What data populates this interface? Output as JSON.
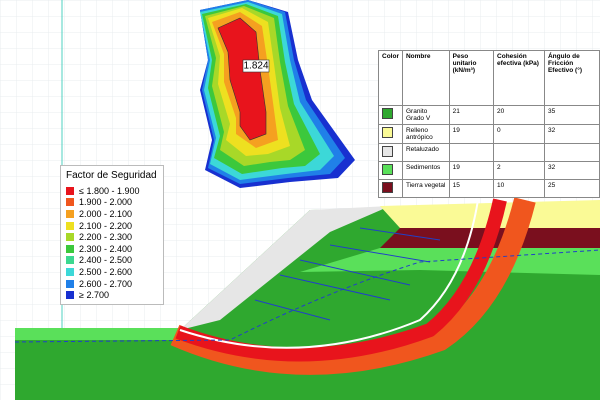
{
  "result": {
    "label": "1.824"
  },
  "legend": {
    "title": "Factor de Seguridad",
    "items": [
      {
        "label": "≤ 1.800 - 1.900",
        "color": "#e8141c"
      },
      {
        "label": "1.900 - 2.000",
        "color": "#f0561e"
      },
      {
        "label": "2.000 - 2.100",
        "color": "#f5a020"
      },
      {
        "label": "2.100 - 2.200",
        "color": "#eee020"
      },
      {
        "label": "2.200 - 2.300",
        "color": "#a8d828"
      },
      {
        "label": "2.300 - 2.400",
        "color": "#3cc83c"
      },
      {
        "label": "2.400 - 2.500",
        "color": "#3cd890"
      },
      {
        "label": "2.500 - 2.600",
        "color": "#3cd8d8"
      },
      {
        "label": "2.600 - 2.700",
        "color": "#2080e8"
      },
      {
        "label": "≥ 2.700",
        "color": "#1830d0"
      }
    ]
  },
  "table": {
    "headers": [
      "Color",
      "Nombre",
      "Peso unitario (kN/m³)",
      "Cohesión efectiva (kPa)",
      "Ángulo de Fricción Efectivo (°)"
    ],
    "rows": [
      {
        "color": "#2fa82f",
        "name": "Granito Grado V",
        "values": [
          21,
          20,
          35
        ]
      },
      {
        "color": "#fafa96",
        "name": "Relleno antrópico",
        "values": [
          19,
          0,
          32
        ]
      },
      {
        "color": "#e6e6e6",
        "name": "Retaluzado",
        "values": []
      },
      {
        "color": "#5ae05a",
        "name": "Sedimentos",
        "values": [
          19,
          2,
          32
        ]
      },
      {
        "color": "#7a0f1e",
        "name": "Tierra vegetal",
        "values": [
          15,
          10,
          25
        ]
      }
    ]
  }
}
